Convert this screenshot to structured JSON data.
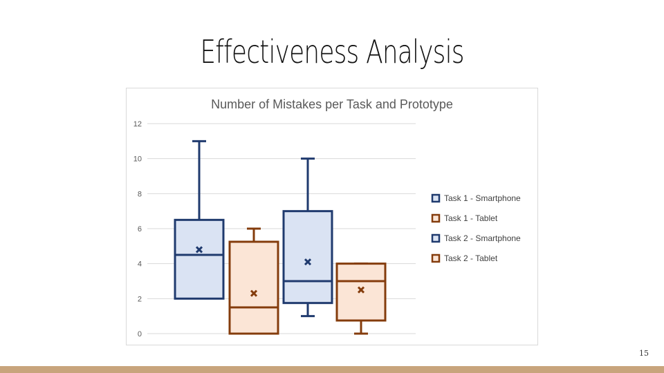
{
  "slide": {
    "title": "Effectiveness Analysis",
    "page_number": "15"
  },
  "colors": {
    "blue_stroke": "#1f3a6e",
    "blue_fill": "#dae3f3",
    "orange_stroke": "#843c0c",
    "orange_fill": "#fbe5d6",
    "footer": "#c8a47c"
  },
  "chart_data": {
    "type": "box",
    "title": "Number of Mistakes per Task and Prototype",
    "ylim": [
      0,
      12
    ],
    "yticks": [
      0,
      2,
      4,
      6,
      8,
      10,
      12
    ],
    "grid": true,
    "legend_position": "right",
    "series": [
      {
        "name": "Task 1 - Smartphone",
        "color": "blue",
        "min": 2,
        "q1": 2,
        "median": 4.5,
        "q3": 6.5,
        "max": 11,
        "mean": 4.8
      },
      {
        "name": "Task 1 - Tablet",
        "color": "orange",
        "min": 0,
        "q1": 0,
        "median": 1.5,
        "q3": 5.25,
        "max": 6,
        "mean": 2.3
      },
      {
        "name": "Task 2 - Smartphone",
        "color": "blue",
        "min": 1,
        "q1": 1.75,
        "median": 3,
        "q3": 7,
        "max": 10,
        "mean": 4.1
      },
      {
        "name": "Task 2 - Tablet",
        "color": "orange",
        "min": 0,
        "q1": 0.75,
        "median": 3,
        "q3": 4,
        "max": 4,
        "mean": 2.5
      }
    ]
  }
}
